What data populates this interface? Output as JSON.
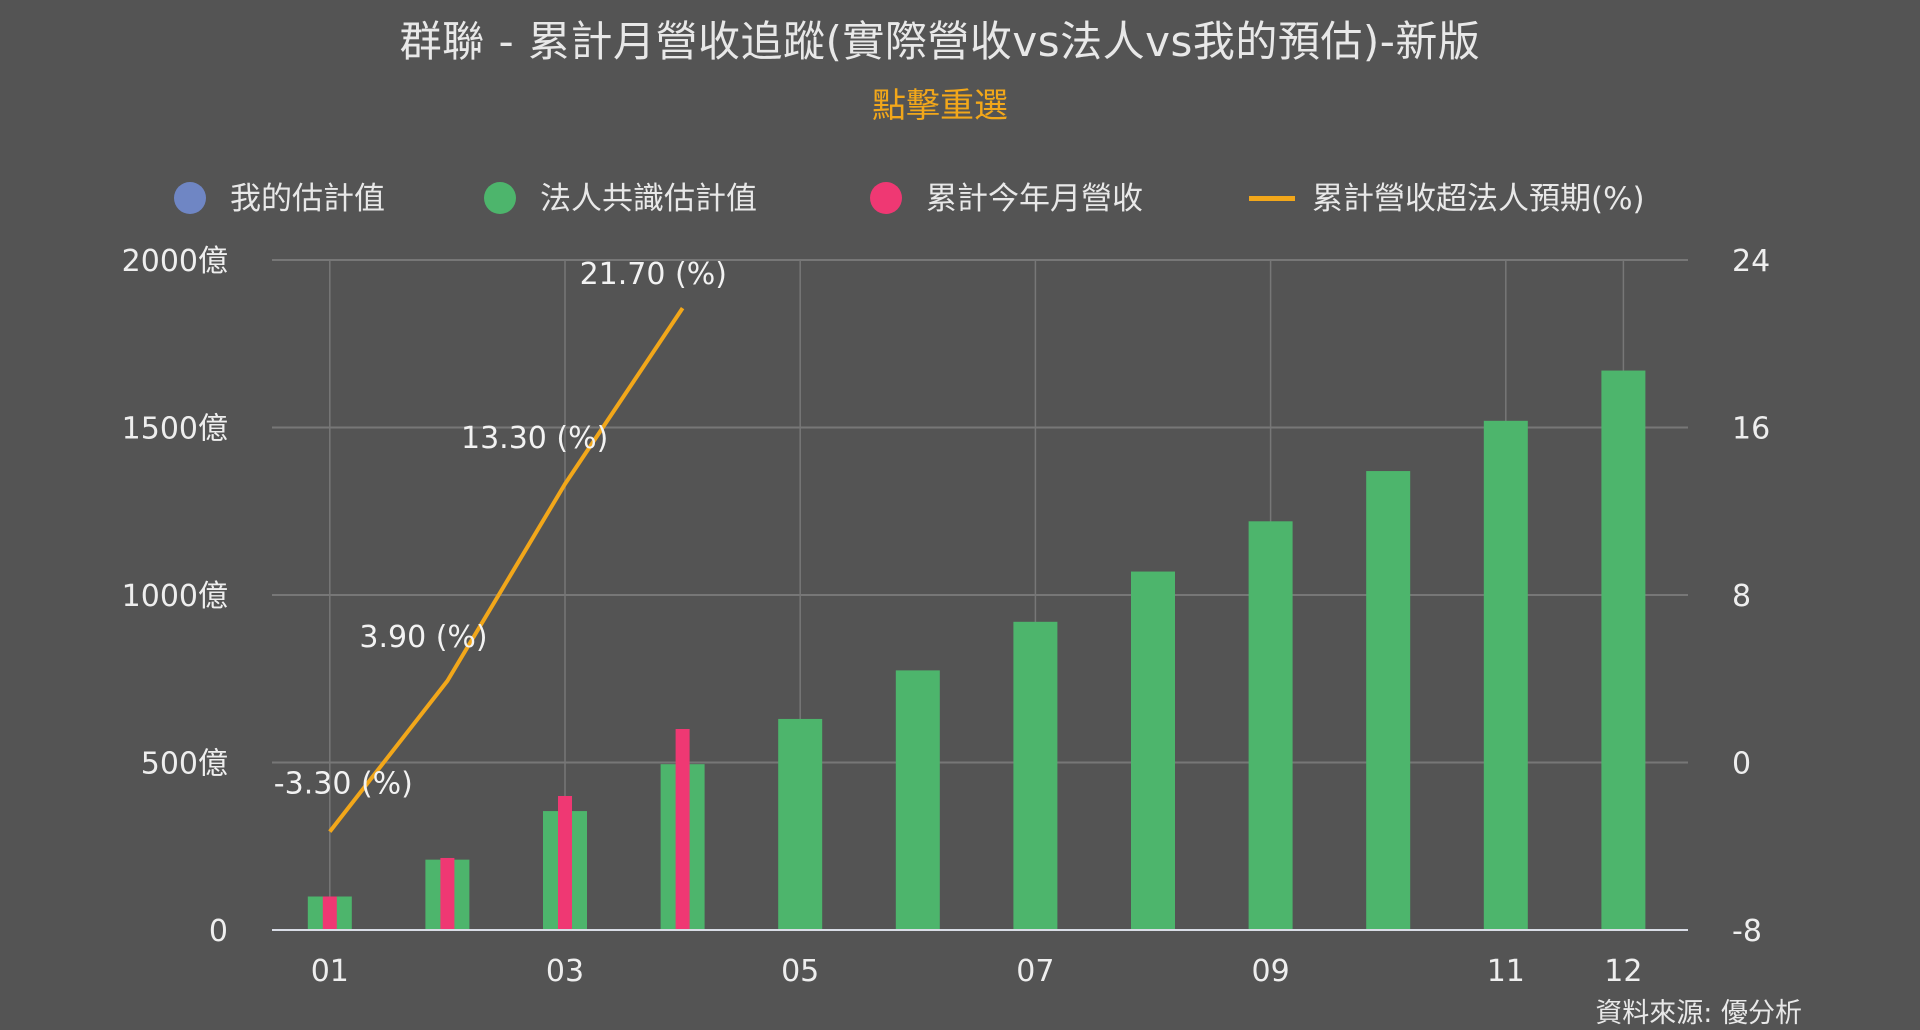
{
  "title": "群聯 - 累計月營收追蹤(實際營收vs法人vs我的預估)-新版",
  "subtitle": "點擊重選",
  "source": "資料來源: 優分析",
  "colors": {
    "background": "#545454",
    "my_estimate": "#6f86c4",
    "consensus": "#4db56c",
    "actual": "#ef3873",
    "beat_line": "#f2a71a",
    "grid": "#777777",
    "subtitle": "#f2a71a"
  },
  "legend": [
    {
      "label": "我的估計值",
      "color": "#6f86c4",
      "shape": "circle"
    },
    {
      "label": "法人共識估計值",
      "color": "#4db56c",
      "shape": "circle"
    },
    {
      "label": "累計今年月營收",
      "color": "#ef3873",
      "shape": "circle"
    },
    {
      "label": "累計營收超法人預期(%)",
      "color": "#f2a71a",
      "shape": "line"
    }
  ],
  "chart_data": {
    "type": "bar",
    "categories": [
      "01",
      "02",
      "03",
      "04",
      "05",
      "06",
      "07",
      "08",
      "09",
      "10",
      "11",
      "12"
    ],
    "x_tick_labels": [
      "01",
      "03",
      "05",
      "07",
      "09",
      "11",
      "12"
    ],
    "y_left": {
      "ticks": [
        "0",
        "500億",
        "1000億",
        "1500億",
        "2000億"
      ],
      "ylim": [
        0,
        2000
      ],
      "unit": "億"
    },
    "y_right": {
      "ticks": [
        "-8",
        "0",
        "8",
        "16",
        "24"
      ],
      "ylim": [
        -8,
        24
      ]
    },
    "series": [
      {
        "name": "法人共識估計值",
        "type": "bar",
        "axis": "left",
        "values": [
          100,
          210,
          355,
          495,
          630,
          775,
          920,
          1070,
          1220,
          1370,
          1520,
          1670
        ]
      },
      {
        "name": "累計今年月營收",
        "type": "bar",
        "axis": "left",
        "values": [
          100,
          215,
          400,
          600,
          null,
          null,
          null,
          null,
          null,
          null,
          null,
          null
        ]
      },
      {
        "name": "累計營收超法人預期(%)",
        "type": "line",
        "axis": "right",
        "values": [
          -3.3,
          3.9,
          13.3,
          21.7,
          null,
          null,
          null,
          null,
          null,
          null,
          null,
          null
        ],
        "data_labels": [
          "-3.30 (%)",
          "3.90 (%)",
          "13.30 (%)",
          "21.70 (%)"
        ]
      }
    ],
    "grid": true,
    "legend_position": "top"
  }
}
